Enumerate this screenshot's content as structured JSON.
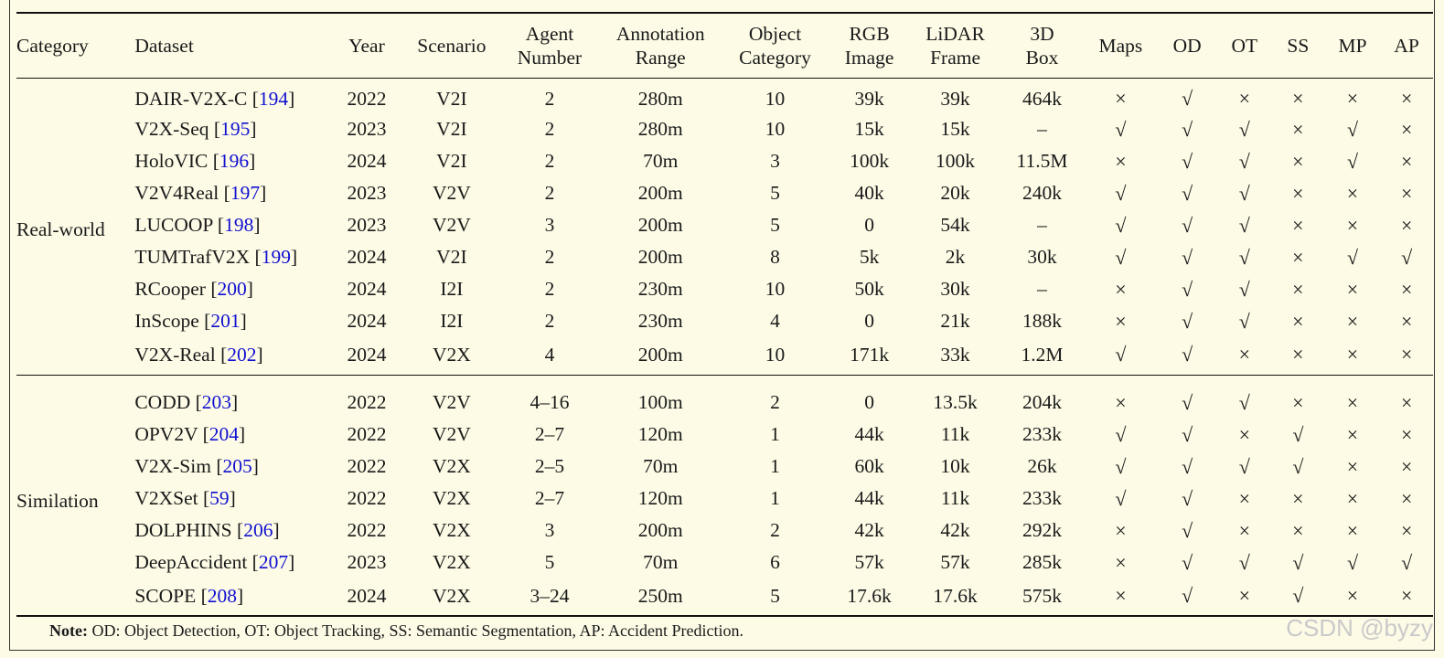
{
  "table": {
    "headers": [
      [
        "Category"
      ],
      [
        "Dataset"
      ],
      [
        "Year"
      ],
      [
        "Scenario"
      ],
      [
        "Agent",
        "Number"
      ],
      [
        "Annotation",
        "Range"
      ],
      [
        "Object",
        "Category"
      ],
      [
        "RGB",
        "Image"
      ],
      [
        "LiDAR",
        "Frame"
      ],
      [
        "3D",
        "Box"
      ],
      [
        "Maps"
      ],
      [
        "OD"
      ],
      [
        "OT"
      ],
      [
        "SS"
      ],
      [
        "MP"
      ],
      [
        "AP"
      ]
    ],
    "groups": [
      {
        "category": "Real-world",
        "rows": [
          {
            "name": "DAIR-V2X-C",
            "ref": "194",
            "year": "2022",
            "scenario": "V2I",
            "agents": "2",
            "range": "280m",
            "objcat": "10",
            "rgb": "39k",
            "lidar": "39k",
            "box": "464k",
            "marks": [
              "×",
              "√",
              "×",
              "×",
              "×",
              "×"
            ]
          },
          {
            "name": "V2X-Seq",
            "ref": "195",
            "year": "2023",
            "scenario": "V2I",
            "agents": "2",
            "range": "280m",
            "objcat": "10",
            "rgb": "15k",
            "lidar": "15k",
            "box": "–",
            "marks": [
              "√",
              "√",
              "√",
              "×",
              "√",
              "×"
            ]
          },
          {
            "name": "HoloVIC",
            "ref": "196",
            "year": "2024",
            "scenario": "V2I",
            "agents": "2",
            "range": "70m",
            "objcat": "3",
            "rgb": "100k",
            "lidar": "100k",
            "box": "11.5M",
            "marks": [
              "×",
              "√",
              "√",
              "×",
              "√",
              "×"
            ]
          },
          {
            "name": "V2V4Real",
            "ref": "197",
            "year": "2023",
            "scenario": "V2V",
            "agents": "2",
            "range": "200m",
            "objcat": "5",
            "rgb": "40k",
            "lidar": "20k",
            "box": "240k",
            "marks": [
              "√",
              "√",
              "√",
              "×",
              "×",
              "×"
            ]
          },
          {
            "name": "LUCOOP",
            "ref": "198",
            "year": "2023",
            "scenario": "V2V",
            "agents": "3",
            "range": "200m",
            "objcat": "5",
            "rgb": "0",
            "lidar": "54k",
            "box": "–",
            "marks": [
              "√",
              "√",
              "√",
              "×",
              "×",
              "×"
            ]
          },
          {
            "name": "TUMTrafV2X",
            "ref": "199",
            "year": "2024",
            "scenario": "V2I",
            "agents": "2",
            "range": "200m",
            "objcat": "8",
            "rgb": "5k",
            "lidar": "2k",
            "box": "30k",
            "marks": [
              "√",
              "√",
              "√",
              "×",
              "√",
              "√"
            ]
          },
          {
            "name": "RCooper",
            "ref": "200",
            "year": "2024",
            "scenario": "I2I",
            "agents": "2",
            "range": "230m",
            "objcat": "10",
            "rgb": "50k",
            "lidar": "30k",
            "box": "–",
            "marks": [
              "×",
              "√",
              "√",
              "×",
              "×",
              "×"
            ]
          },
          {
            "name": "InScope",
            "ref": "201",
            "year": "2024",
            "scenario": "I2I",
            "agents": "2",
            "range": "230m",
            "objcat": "4",
            "rgb": "0",
            "lidar": "21k",
            "box": "188k",
            "marks": [
              "×",
              "√",
              "√",
              "×",
              "×",
              "×"
            ]
          },
          {
            "name": "V2X-Real",
            "ref": "202",
            "year": "2024",
            "scenario": "V2X",
            "agents": "4",
            "range": "200m",
            "objcat": "10",
            "rgb": "171k",
            "lidar": "33k",
            "box": "1.2M",
            "marks": [
              "√",
              "√",
              "×",
              "×",
              "×",
              "×"
            ]
          }
        ]
      },
      {
        "category": "Similation",
        "rows": [
          {
            "name": "CODD",
            "ref": "203",
            "year": "2022",
            "scenario": "V2V",
            "agents": "4–16",
            "range": "100m",
            "objcat": "2",
            "rgb": "0",
            "lidar": "13.5k",
            "box": "204k",
            "marks": [
              "×",
              "√",
              "√",
              "×",
              "×",
              "×"
            ]
          },
          {
            "name": "OPV2V",
            "ref": "204",
            "year": "2022",
            "scenario": "V2V",
            "agents": "2–7",
            "range": "120m",
            "objcat": "1",
            "rgb": "44k",
            "lidar": "11k",
            "box": "233k",
            "marks": [
              "√",
              "√",
              "×",
              "√",
              "×",
              "×"
            ]
          },
          {
            "name": "V2X-Sim",
            "ref": "205",
            "year": "2022",
            "scenario": "V2X",
            "agents": "2–5",
            "range": "70m",
            "objcat": "1",
            "rgb": "60k",
            "lidar": "10k",
            "box": "26k",
            "marks": [
              "√",
              "√",
              "√",
              "√",
              "×",
              "×"
            ]
          },
          {
            "name": "V2XSet",
            "ref": "59",
            "year": "2022",
            "scenario": "V2X",
            "agents": "2–7",
            "range": "120m",
            "objcat": "1",
            "rgb": "44k",
            "lidar": "11k",
            "box": "233k",
            "marks": [
              "√",
              "√",
              "×",
              "×",
              "×",
              "×"
            ]
          },
          {
            "name": "DOLPHINS",
            "ref": "206",
            "year": "2022",
            "scenario": "V2X",
            "agents": "3",
            "range": "200m",
            "objcat": "2",
            "rgb": "42k",
            "lidar": "42k",
            "box": "292k",
            "marks": [
              "×",
              "√",
              "×",
              "×",
              "×",
              "×"
            ]
          },
          {
            "name": "DeepAccident",
            "ref": "207",
            "year": "2023",
            "scenario": "V2X",
            "agents": "5",
            "range": "70m",
            "objcat": "6",
            "rgb": "57k",
            "lidar": "57k",
            "box": "285k",
            "marks": [
              "×",
              "√",
              "√",
              "√",
              "√",
              "√"
            ]
          },
          {
            "name": "SCOPE",
            "ref": "208",
            "year": "2024",
            "scenario": "V2X",
            "agents": "3–24",
            "range": "250m",
            "objcat": "5",
            "rgb": "17.6k",
            "lidar": "17.6k",
            "box": "575k",
            "marks": [
              "×",
              "√",
              "×",
              "√",
              "×",
              "×"
            ]
          }
        ]
      }
    ]
  },
  "note": {
    "label": "Note:",
    "text": "OD: Object Detection, OT: Object Tracking, SS: Semantic Segmentation, AP: Accident Prediction."
  },
  "watermark": "CSDN @byzy",
  "colors": {
    "background": "#fdfbe6",
    "reference": "#1010d0",
    "text": "#1a1a1a"
  }
}
